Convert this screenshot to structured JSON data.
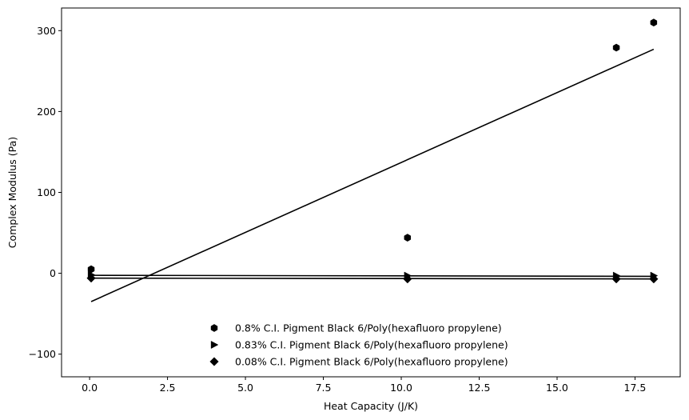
{
  "chart_data": {
    "type": "scatter",
    "xlabel": "Heat Capacity (J/K)",
    "ylabel": "Complex Modulus (Pa)",
    "xlim": [
      -0.9,
      18.95
    ],
    "ylim": [
      -128,
      328
    ],
    "xticks": [
      0.0,
      2.5,
      5.0,
      7.5,
      10.0,
      12.5,
      15.0,
      17.5
    ],
    "xtick_labels": [
      "0.0",
      "2.5",
      "5.0",
      "7.5",
      "10.0",
      "12.5",
      "15.0",
      "17.5"
    ],
    "yticks": [
      -100,
      0,
      100,
      200,
      300
    ],
    "ytick_labels": [
      "−100",
      "0",
      "100",
      "200",
      "300"
    ],
    "grid": false,
    "legend_position": "lower center",
    "marker_color": "#000000",
    "series": [
      {
        "name": "0.8% C.I. Pigment Black 6/Poly(hexafluoro propylene)",
        "marker": "hexagon",
        "x": [
          0.05,
          10.2,
          16.9,
          18.1
        ],
        "y": [
          5,
          44,
          279,
          310
        ],
        "trend_line": {
          "x": [
            0.05,
            18.1
          ],
          "y": [
            -35,
            277
          ]
        }
      },
      {
        "name": "0.83% C.I. Pigment Black 6/Poly(hexafluoro propylene)",
        "marker": "triangle-right",
        "x": [
          0.05,
          10.2,
          16.9,
          18.1
        ],
        "y": [
          -2,
          -3,
          -3,
          -3
        ],
        "trend_line": {
          "x": [
            0.05,
            18.1
          ],
          "y": [
            -2.5,
            -3.8
          ]
        }
      },
      {
        "name": "0.08% C.I. Pigment Black 6/Poly(hexafluoro propylene)",
        "marker": "diamond",
        "x": [
          0.05,
          10.2,
          16.9,
          18.1
        ],
        "y": [
          -6,
          -7,
          -7,
          -7
        ],
        "trend_line": {
          "x": [
            0.05,
            18.1
          ],
          "y": [
            -6,
            -7
          ]
        }
      }
    ]
  }
}
